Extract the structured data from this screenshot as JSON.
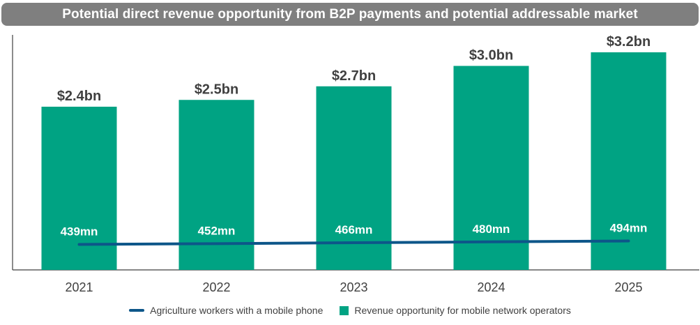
{
  "title": "Potential direct revenue opportunity from B2P payments and potential addressable market",
  "colors": {
    "bar": "#00a383",
    "line": "#0d5689",
    "title_bg": "#7f7f7f",
    "axis": "#3f3f3f",
    "label_dark": "#404040",
    "label_light": "#ffffff"
  },
  "legend": {
    "line_label": "Agriculture workers with a mobile phone",
    "bar_label": "Revenue opportunity for mobile network operators"
  },
  "chart_data": {
    "type": "bar",
    "categories": [
      "2021",
      "2022",
      "2023",
      "2024",
      "2025"
    ],
    "series": [
      {
        "name": "Revenue opportunity for mobile network operators",
        "type": "bar",
        "values": [
          2.4,
          2.5,
          2.7,
          3.0,
          3.2
        ],
        "labels": [
          "$2.4bn",
          "$2.5bn",
          "$2.7bn",
          "$3.0bn",
          "$3.2bn"
        ]
      },
      {
        "name": "Agriculture workers with a mobile phone",
        "type": "line",
        "values": [
          439,
          452,
          466,
          480,
          494
        ],
        "labels": [
          "439mn",
          "452mn",
          "466mn",
          "480mn",
          "494mn"
        ]
      }
    ],
    "legend_position": "bottom",
    "grid": false
  }
}
